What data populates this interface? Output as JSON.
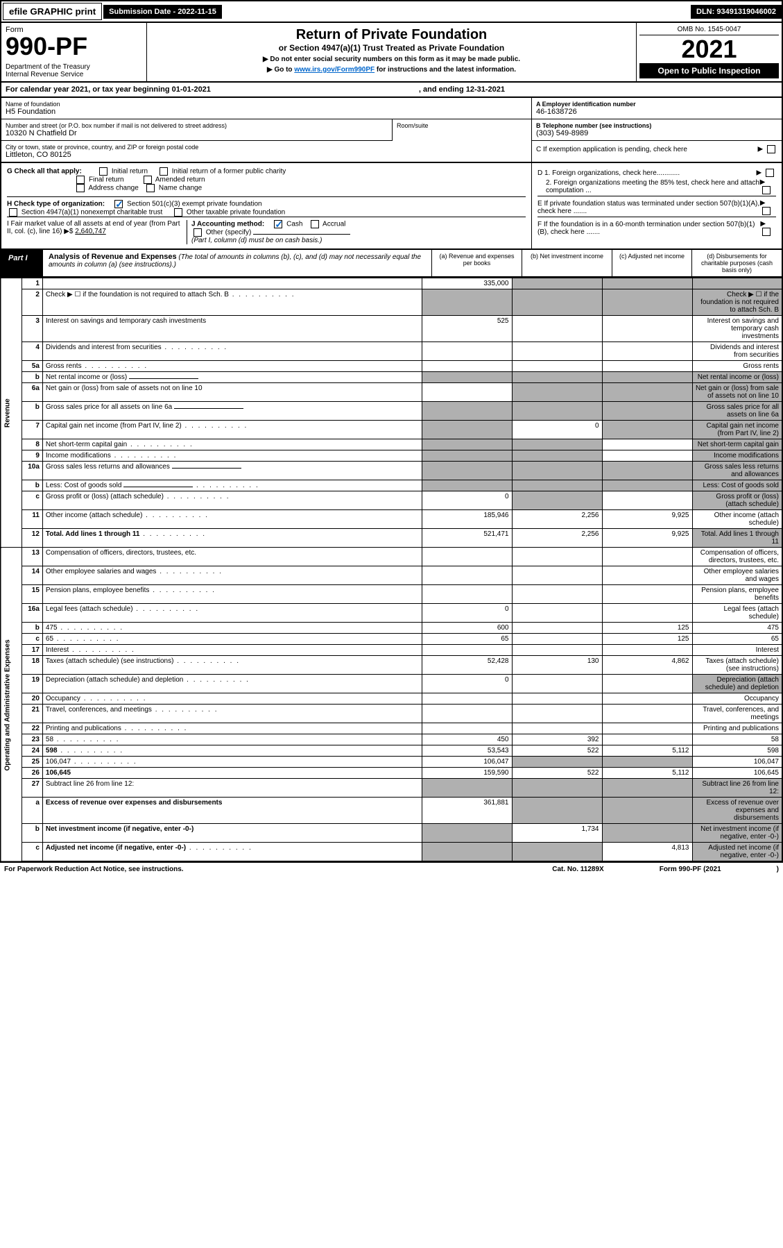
{
  "topbar": {
    "efile": "efile GRAPHIC print",
    "subdate_lbl": "Submission Date - ",
    "subdate": "2022-11-15",
    "dln_lbl": "DLN: ",
    "dln": "93491319046002"
  },
  "header": {
    "form_lbl": "Form",
    "form_no": "990-PF",
    "dept": "Department of the Treasury\nInternal Revenue Service",
    "title": "Return of Private Foundation",
    "subtitle": "or Section 4947(a)(1) Trust Treated as Private Foundation",
    "instr1": "▶ Do not enter social security numbers on this form as it may be made public.",
    "instr2": "▶ Go to ",
    "instr_link": "www.irs.gov/Form990PF",
    "instr3": " for instructions and the latest information.",
    "omb": "OMB No. 1545-0047",
    "year": "2021",
    "open": "Open to Public Inspection"
  },
  "cal": {
    "text": "For calendar year 2021, or tax year beginning 01-01-2021",
    "end": ", and ending 12-31-2021"
  },
  "entity": {
    "name_lbl": "Name of foundation",
    "name": "H5 Foundation",
    "addr_lbl": "Number and street (or P.O. box number if mail is not delivered to street address)",
    "addr": "10320 N Chatfield Dr",
    "room_lbl": "Room/suite",
    "city_lbl": "City or town, state or province, country, and ZIP or foreign postal code",
    "city": "Littleton, CO  80125",
    "ein_lbl": "A Employer identification number",
    "ein": "46-1638726",
    "tel_lbl": "B Telephone number (see instructions)",
    "tel": "(303) 549-8989",
    "c_lbl": "C If exemption application is pending, check here"
  },
  "checks": {
    "g_lbl": "G Check all that apply:",
    "g_opts": [
      "Initial return",
      "Initial return of a former public charity",
      "Final return",
      "Amended return",
      "Address change",
      "Name change"
    ],
    "h_lbl": "H Check type of organization:",
    "h1": "Section 501(c)(3) exempt private foundation",
    "h2": "Section 4947(a)(1) nonexempt charitable trust",
    "h3": "Other taxable private foundation",
    "i_lbl": "I Fair market value of all assets at end of year (from Part II, col. (c), line 16) ▶$ ",
    "i_val": "2,640,747",
    "j_lbl": "J Accounting method:",
    "j_opts": [
      "Cash",
      "Accrual"
    ],
    "j_other": "Other (specify)",
    "j_note": "(Part I, column (d) must be on cash basis.)",
    "d1": "D 1. Foreign organizations, check here............",
    "d2": "2. Foreign organizations meeting the 85% test, check here and attach computation ...",
    "e": "E  If private foundation status was terminated under section 507(b)(1)(A), check here .......",
    "f": "F  If the foundation is in a 60-month termination under section 507(b)(1)(B), check here ......."
  },
  "part1": {
    "lbl": "Part I",
    "title": "Analysis of Revenue and Expenses",
    "note": " (The total of amounts in columns (b), (c), and (d) may not necessarily equal the amounts in column (a) (see instructions).)",
    "col_a": "(a)   Revenue and expenses per books",
    "col_b": "(b)   Net investment income",
    "col_c": "(c)   Adjusted net income",
    "col_d": "(d)   Disbursements for charitable purposes (cash basis only)"
  },
  "sections": {
    "revenue": "Revenue",
    "opex": "Operating and Administrative Expenses"
  },
  "rows": [
    {
      "n": "1",
      "d": "",
      "a": "335,000",
      "b": "",
      "c": "",
      "shade": [
        "b",
        "c",
        "d"
      ]
    },
    {
      "n": "2",
      "d": "Check ▶ ☐ if the foundation is not required to attach Sch. B",
      "dots": true,
      "shade": [
        "a",
        "b",
        "c",
        "d"
      ]
    },
    {
      "n": "3",
      "d": "Interest on savings and temporary cash investments",
      "a": "525"
    },
    {
      "n": "4",
      "d": "Dividends and interest from securities",
      "dots": true
    },
    {
      "n": "5a",
      "d": "Gross rents",
      "dots": true
    },
    {
      "n": "b",
      "d": "Net rental income or (loss)",
      "inline_box": true,
      "shade": [
        "a",
        "b",
        "c",
        "d"
      ]
    },
    {
      "n": "6a",
      "d": "Net gain or (loss) from sale of assets not on line 10",
      "shade": [
        "b",
        "c",
        "d"
      ]
    },
    {
      "n": "b",
      "d": "Gross sales price for all assets on line 6a",
      "inline_box": true,
      "shade": [
        "a",
        "b",
        "c",
        "d"
      ]
    },
    {
      "n": "7",
      "d": "Capital gain net income (from Part IV, line 2)",
      "dots": true,
      "b": "0",
      "shade": [
        "a",
        "c",
        "d"
      ]
    },
    {
      "n": "8",
      "d": "Net short-term capital gain",
      "dots": true,
      "shade": [
        "a",
        "b",
        "d"
      ]
    },
    {
      "n": "9",
      "d": "Income modifications",
      "dots": true,
      "shade": [
        "a",
        "b",
        "d"
      ]
    },
    {
      "n": "10a",
      "d": "Gross sales less returns and allowances",
      "inline_box": true,
      "shade": [
        "a",
        "b",
        "c",
        "d"
      ]
    },
    {
      "n": "b",
      "d": "Less: Cost of goods sold",
      "inline_box": true,
      "dots": true,
      "shade": [
        "a",
        "b",
        "c",
        "d"
      ]
    },
    {
      "n": "c",
      "d": "Gross profit or (loss) (attach schedule)",
      "dots": true,
      "a": "0",
      "shade": [
        "b",
        "d"
      ]
    },
    {
      "n": "11",
      "d": "Other income (attach schedule)",
      "dots": true,
      "a": "185,946",
      "b": "2,256",
      "c": "9,925"
    },
    {
      "n": "12",
      "d": "Total. Add lines 1 through 11",
      "dots": true,
      "bold": true,
      "a": "521,471",
      "b": "2,256",
      "c": "9,925",
      "shade": [
        "d"
      ]
    },
    {
      "n": "13",
      "d": "Compensation of officers, directors, trustees, etc."
    },
    {
      "n": "14",
      "d": "Other employee salaries and wages",
      "dots": true
    },
    {
      "n": "15",
      "d": "Pension plans, employee benefits",
      "dots": true
    },
    {
      "n": "16a",
      "d": "Legal fees (attach schedule)",
      "dots": true,
      "a": "0"
    },
    {
      "n": "b",
      "d": "475",
      "dots": true,
      "a": "600",
      "c": "125"
    },
    {
      "n": "c",
      "d": "65",
      "dots": true,
      "a": "65",
      "c": "125"
    },
    {
      "n": "17",
      "d": "Interest",
      "dots": true
    },
    {
      "n": "18",
      "d": "Taxes (attach schedule) (see instructions)",
      "dots": true,
      "a": "52,428",
      "b": "130",
      "c": "4,862"
    },
    {
      "n": "19",
      "d": "Depreciation (attach schedule) and depletion",
      "dots": true,
      "a": "0",
      "shade": [
        "d"
      ]
    },
    {
      "n": "20",
      "d": "Occupancy",
      "dots": true
    },
    {
      "n": "21",
      "d": "Travel, conferences, and meetings",
      "dots": true
    },
    {
      "n": "22",
      "d": "Printing and publications",
      "dots": true
    },
    {
      "n": "23",
      "d": "58",
      "dots": true,
      "a": "450",
      "b": "392"
    },
    {
      "n": "24",
      "d": "598",
      "dots": true,
      "bold": true,
      "a": "53,543",
      "b": "522",
      "c": "5,112"
    },
    {
      "n": "25",
      "d": "106,047",
      "dots": true,
      "a": "106,047",
      "shade": [
        "b",
        "c"
      ]
    },
    {
      "n": "26",
      "d": "106,645",
      "bold": true,
      "a": "159,590",
      "b": "522",
      "c": "5,112"
    },
    {
      "n": "27",
      "d": "Subtract line 26 from line 12:",
      "shade": [
        "a",
        "b",
        "c",
        "d"
      ]
    },
    {
      "n": "a",
      "d": "Excess of revenue over expenses and disbursements",
      "bold": true,
      "a": "361,881",
      "shade": [
        "b",
        "c",
        "d"
      ]
    },
    {
      "n": "b",
      "d": "Net investment income (if negative, enter -0-)",
      "bold": true,
      "b": "1,734",
      "shade": [
        "a",
        "c",
        "d"
      ]
    },
    {
      "n": "c",
      "d": "Adjusted net income (if negative, enter -0-)",
      "bold": true,
      "dots": true,
      "c": "4,813",
      "shade": [
        "a",
        "b",
        "d"
      ]
    }
  ],
  "footer": {
    "left": "For Paperwork Reduction Act Notice, see instructions.",
    "mid": "Cat. No. 11289X",
    "right": "Form 990-PF (2021)"
  }
}
